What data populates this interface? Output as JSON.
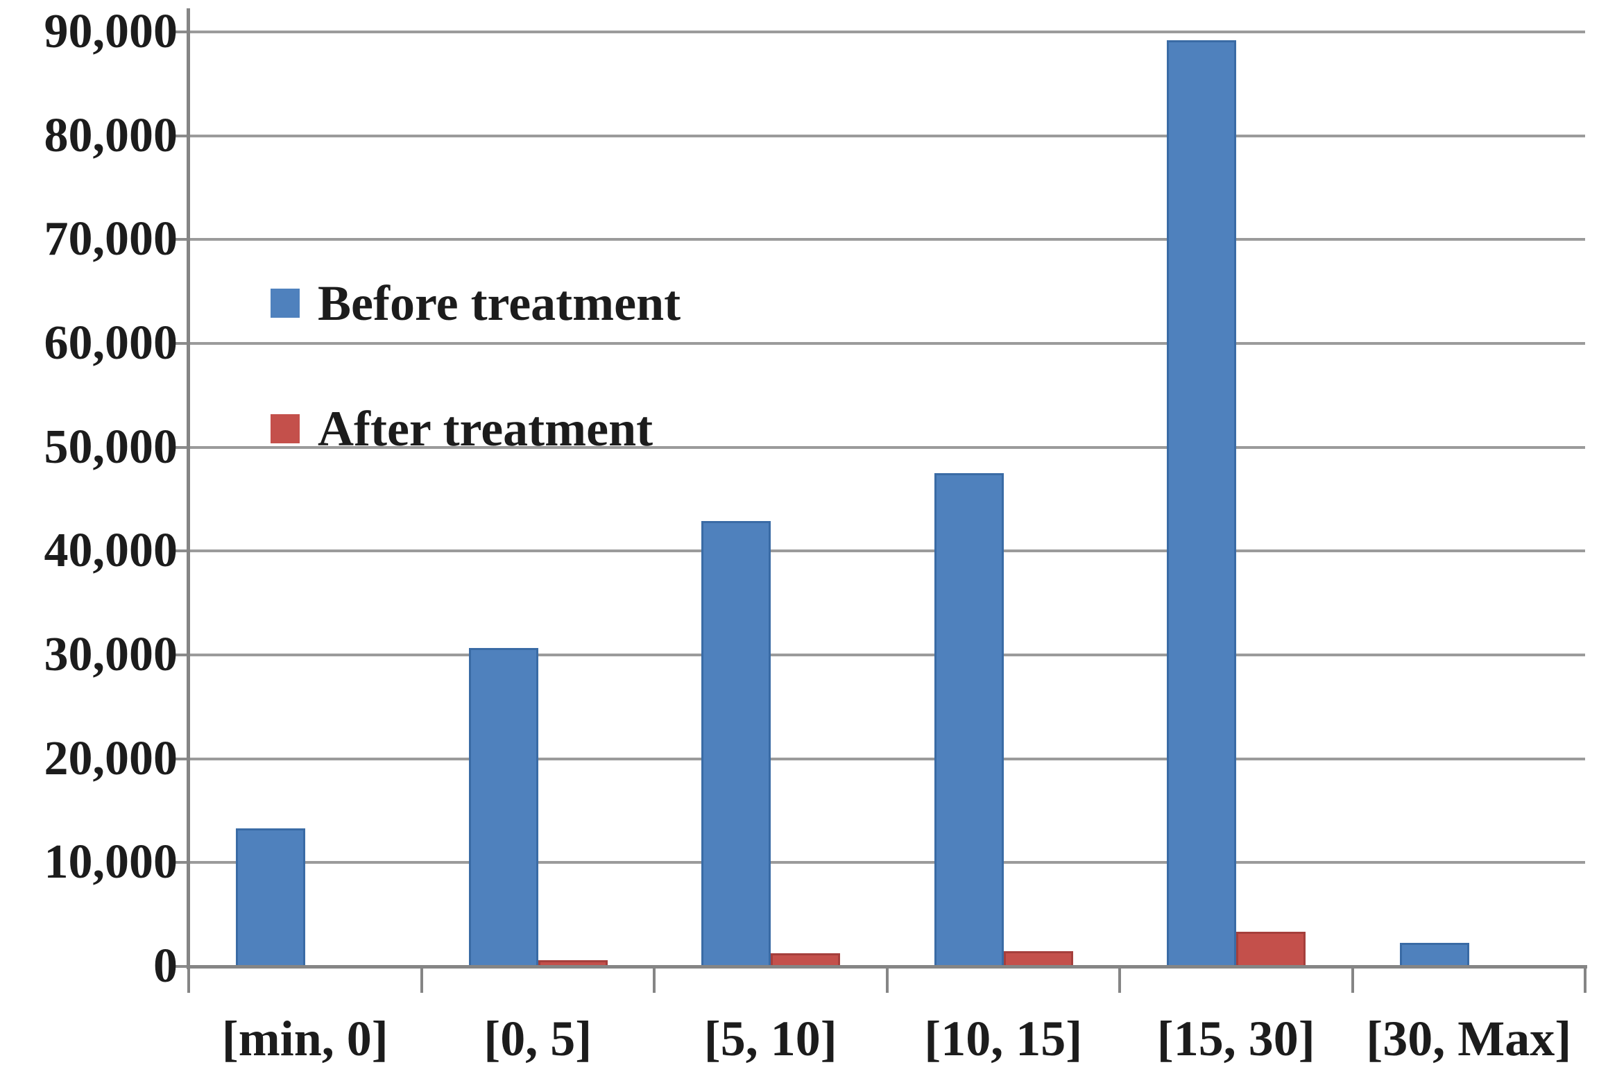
{
  "chart_data": {
    "type": "bar",
    "title": "",
    "categories": [
      "[min, 0]",
      "[0, 5]",
      "[5, 10]",
      "[10, 15]",
      "[15, 30]",
      "[30, Max]"
    ],
    "series": [
      {
        "name": "Before treatment",
        "color": "#4f81bd",
        "border_color": "#3a6ba5",
        "values": [
          13300,
          30700,
          42900,
          47500,
          89200,
          2250
        ]
      },
      {
        "name": "After treatment",
        "color": "#c4504b",
        "border_color": "#a53f3c",
        "values": [
          0,
          600,
          1250,
          1500,
          3330,
          0
        ]
      }
    ],
    "y_axis": {
      "min": 0,
      "max": 90000,
      "step": 10000,
      "tick_labels": [
        "0",
        "10,000",
        "20,000",
        "30,000",
        "40,000",
        "50,000",
        "60,000",
        "70,000",
        "80,000",
        "90,000"
      ]
    },
    "x_axis": {
      "tick_labels": [
        "[min, 0]",
        "[0, 5]",
        "[5, 10]",
        "[10, 15]",
        "[15, 30]",
        "[30, Max]"
      ]
    },
    "grid": true,
    "legend_position": "upper-left-inside",
    "legend": [
      {
        "label": "Before treatment",
        "color": "#4f81bd"
      },
      {
        "label": "After treatment",
        "color": "#c4504b"
      }
    ]
  },
  "colors": {
    "grid": "#9b9b9b",
    "axis": "#858585",
    "text": "#1c1c1c",
    "background": "#ffffff"
  }
}
